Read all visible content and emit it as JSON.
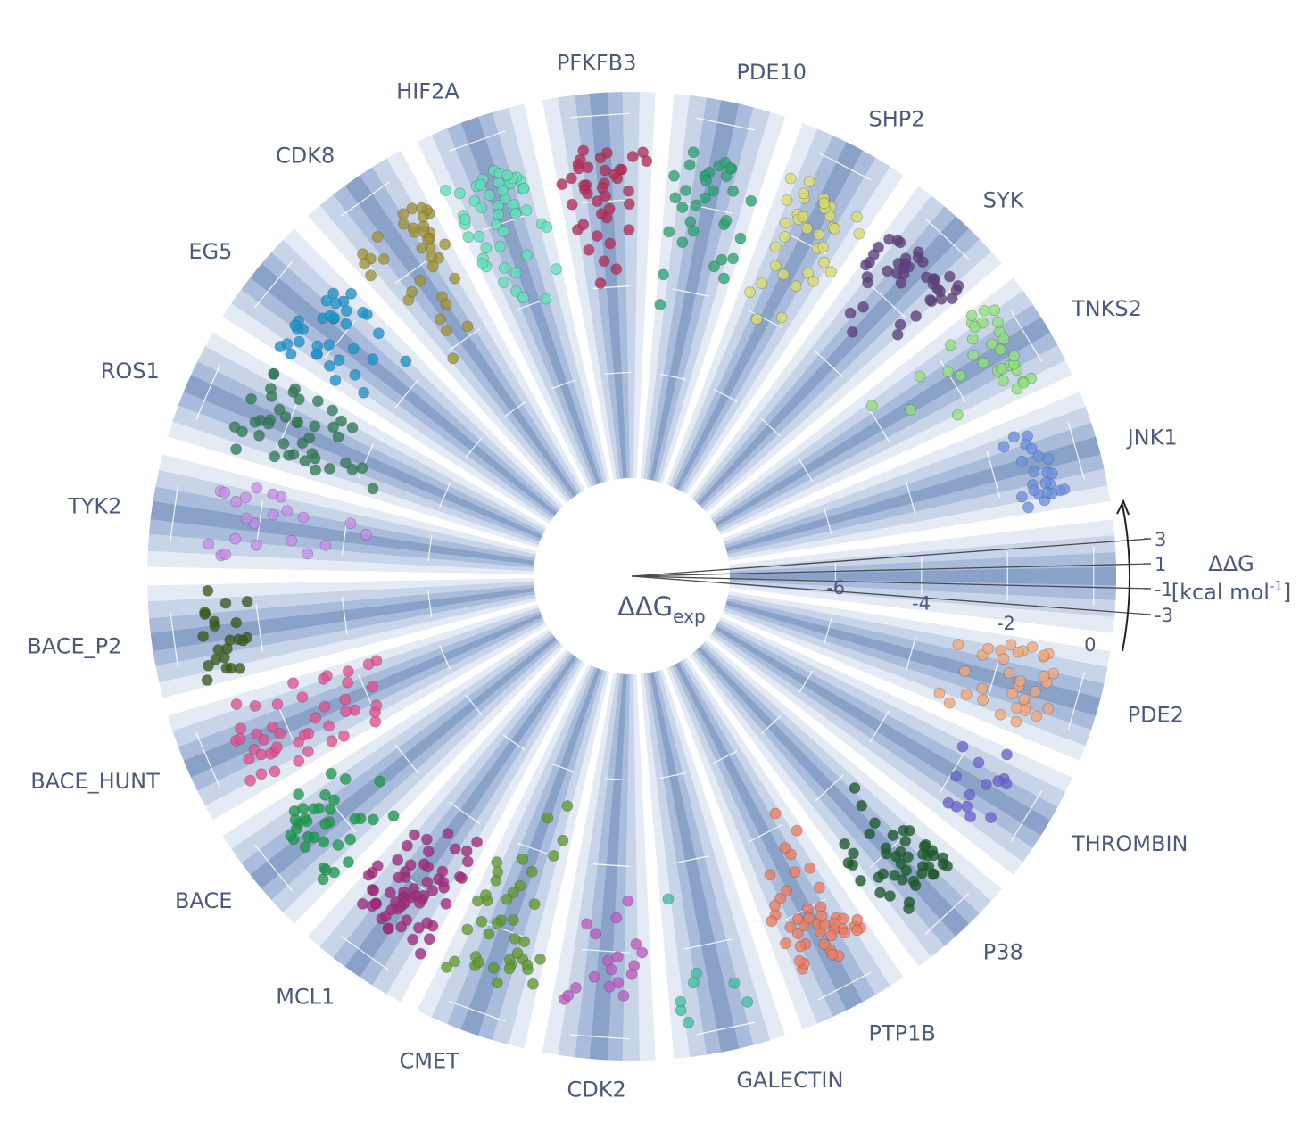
{
  "chart_data": {
    "type": "scatter",
    "subtype": "polar-strip",
    "radial_axis": {
      "title": "ΔΔG",
      "title_subscript": "exp",
      "range": [
        -8.5,
        0.5
      ],
      "tick_values": [
        -6,
        -4,
        -2,
        0
      ],
      "tick_labels": [
        "-6",
        "-4",
        "-2",
        "0"
      ]
    },
    "angular_offset_axis": {
      "title_line1": "ΔΔG",
      "title_line2_prefix": "[kcal mol",
      "title_line2_sup": "-1",
      "title_line2_suffix": "]",
      "tick_values": [
        3,
        1,
        -1,
        -3
      ],
      "tick_labels": [
        "3",
        "1",
        "-1",
        "-3"
      ]
    },
    "colors": {
      "band_light": "#e4ebf5",
      "band_mid": "#c8d5e8",
      "band_dark": "#a9bcdb",
      "band_core": "#8aa2c8",
      "text": "#4b5a78"
    },
    "series": [
      {
        "name": "JNK1",
        "color": "#6b8fe0",
        "y": [
          -1.2,
          -1.0,
          -0.8,
          -0.9,
          -1.4,
          -0.6,
          -1.1,
          -0.7,
          -1.3,
          -0.9,
          -1.0,
          -1.5,
          -0.8,
          -1.2,
          -0.5,
          -1.1,
          -0.9,
          -1.6,
          -0.7,
          -1.0,
          -1.3,
          -0.8,
          -1.1
        ]
      },
      {
        "name": "TNKS2",
        "color": "#8fe07a",
        "y": [
          -0.7,
          -0.5,
          -0.9,
          -0.6,
          -1.0,
          -0.4,
          -0.8,
          -0.7,
          -1.2,
          -0.5,
          -0.6,
          -1.6,
          -0.9,
          -0.3,
          -0.8,
          -1.1,
          -2.0,
          -2.6,
          -3.2,
          -3.9,
          -0.6,
          -0.7,
          -1.0,
          -0.5,
          -0.4,
          -0.8,
          -1.3,
          -1.8,
          -2.3,
          -0.9,
          -0.6,
          -0.5
        ]
      },
      {
        "name": "SYK",
        "color": "#5e3d7e",
        "y": [
          -1.0,
          -0.8,
          -1.2,
          -0.9,
          -1.4,
          -0.7,
          -1.1,
          -1.5,
          -1.8,
          -0.6,
          -1.0,
          -1.3,
          -0.9,
          -0.8,
          -1.6,
          -2.0,
          -2.5,
          -2.8,
          -3.1,
          -1.2,
          -0.7,
          -1.1,
          -0.9,
          -1.4,
          -1.0,
          -0.8,
          -1.3,
          -1.7,
          -2.2,
          -1.5,
          -0.9,
          -1.2,
          -1.0,
          -0.6,
          -1.1,
          -1.9,
          -2.4,
          -1.0,
          -0.8,
          -1.3
        ]
      },
      {
        "name": "SHP2",
        "color": "#d9dd6a",
        "y": [
          -1.0,
          -1.5,
          -2.0,
          -2.4,
          -0.8,
          -1.2,
          -1.7,
          -2.9,
          -3.3,
          -1.1,
          -0.9,
          -1.4,
          -1.9,
          -2.6,
          -3.6,
          -1.3,
          -0.7,
          -1.0,
          -1.6,
          -2.2,
          -2.7,
          -3.0,
          -1.8,
          -1.2,
          -0.9,
          -2.1,
          -1.5,
          -1.1,
          -3.8,
          -4.1,
          -1.4,
          -2.3,
          -1.7,
          -1.0,
          -2.8
        ]
      },
      {
        "name": "PDE10",
        "color": "#2aa36f",
        "y": [
          -1.0,
          -1.3,
          -1.6,
          -2.0,
          -2.3,
          -2.7,
          -3.0,
          -1.2,
          -0.9,
          -1.5,
          -1.8,
          -2.5,
          -3.3,
          -3.7,
          -1.1,
          -1.4,
          -2.1,
          -2.9,
          -1.7,
          -1.0,
          -2.4,
          -3.5,
          -1.3,
          -0.8,
          -1.9,
          -2.6,
          -3.1,
          -4.4,
          -1.2,
          -1.6,
          -2.2,
          -1.0,
          -1.4
        ]
      },
      {
        "name": "PFKFB3",
        "color": "#b52c56",
        "y": [
          -1.0,
          -1.3,
          -1.6,
          -1.9,
          -2.3,
          -2.6,
          -3.0,
          -3.4,
          -0.9,
          -1.2,
          -1.5,
          -1.8,
          -2.1,
          -2.8,
          -0.8,
          -1.1,
          -1.4,
          -1.7,
          -2.0,
          -2.4,
          -2.7,
          -3.1,
          -3.6,
          -1.0,
          -1.3,
          -1.6,
          -1.2,
          -0.9,
          -2.2,
          -1.5,
          -1.8,
          -3.9,
          -1.1,
          -1.4,
          -2.5,
          -1.7,
          -1.0,
          -1.3,
          -2.0,
          -1.6
        ]
      },
      {
        "name": "HIF2A",
        "color": "#5fe0b8",
        "y": [
          -0.9,
          -1.2,
          -1.5,
          -1.8,
          -2.1,
          -2.4,
          -2.8,
          -3.2,
          -3.6,
          -4.0,
          -0.8,
          -1.1,
          -1.4,
          -1.7,
          -2.0,
          -2.3,
          -2.6,
          -3.0,
          -3.4,
          -1.0,
          -1.3,
          -1.6,
          -1.9,
          -2.2,
          -2.5,
          -0.9,
          -1.2,
          -1.5,
          -1.8,
          -1.1,
          -1.4,
          -2.0,
          -2.7,
          -3.3,
          -1.0,
          -1.3,
          -1.7,
          -0.8,
          -1.2,
          -1.6,
          -2.4,
          -1.0,
          -1.5,
          -1.1,
          -1.9,
          -2.9,
          -3.8,
          -1.3,
          -1.0,
          -1.4
        ]
      },
      {
        "name": "CDK8",
        "color": "#a19232",
        "y": [
          -0.9,
          -1.2,
          -1.5,
          -1.8,
          -2.1,
          -2.5,
          -2.9,
          -3.3,
          -3.8,
          -4.2,
          -1.0,
          -1.3,
          -1.6,
          -1.9,
          -2.3,
          -2.7,
          -1.1,
          -1.4,
          -0.8,
          -1.2,
          -1.7,
          -2.0,
          -1.0,
          -1.5,
          -0.9,
          -1.3,
          -2.4,
          -3.1,
          -3.6,
          -1.1,
          -1.6,
          -1.0,
          -1.4,
          -0.8,
          -1.2,
          -2.2
        ]
      },
      {
        "name": "EG5",
        "color": "#1a93cc",
        "y": [
          -1.2,
          -1.5,
          -1.8,
          -2.1,
          -2.4,
          -2.8,
          -3.2,
          -1.0,
          -1.3,
          -1.6,
          -1.9,
          -2.2,
          -2.6,
          -1.1,
          -1.4,
          -1.7,
          -2.0,
          -2.3,
          -1.2,
          -1.5,
          -1.8,
          -1.0,
          -1.3,
          -1.6,
          -2.9,
          -3.5,
          -1.4,
          -1.1,
          -1.7,
          -2.5,
          -1.2,
          -1.9,
          -1.5,
          -1.0
        ]
      },
      {
        "name": "ROS1",
        "color": "#2f7a55",
        "y": [
          -0.9,
          -1.2,
          -1.6,
          -2.0,
          -2.4,
          -2.8,
          -3.2,
          -3.6,
          -4.0,
          -4.4,
          -1.1,
          -1.4,
          -1.8,
          -2.2,
          -2.6,
          -3.0,
          -3.4,
          -3.8,
          -1.0,
          -1.3,
          -1.7,
          -2.1,
          -2.5,
          -2.9,
          -3.3,
          -1.2,
          -1.5,
          -1.9,
          -2.3,
          -2.7,
          -3.1,
          -1.1,
          -1.6,
          -2.0,
          -2.4,
          -2.8,
          -1.3,
          -1.8,
          -2.2,
          -2.6,
          -3.0,
          -1.4
        ]
      },
      {
        "name": "TYK2",
        "color": "#c78ce8",
        "y": [
          -0.9,
          -1.2,
          -1.6,
          -2.0,
          -2.4,
          -2.8,
          -3.2,
          -3.6,
          -4.1,
          -4.5,
          -1.0,
          -1.4,
          -1.8,
          -2.2,
          -2.6,
          -3.0,
          -1.1,
          -1.5,
          -1.9,
          -2.3,
          -1.3,
          -1.7
        ]
      },
      {
        "name": "BACE_P2",
        "color": "#3a5a1a",
        "y": [
          -0.7,
          -0.9,
          -1.1,
          -1.3,
          -1.5,
          -1.7,
          -0.8,
          -1.0,
          -1.2,
          -1.4,
          -1.6,
          -0.6,
          -0.9,
          -1.1,
          -1.3,
          -1.0,
          -0.8,
          -1.2,
          -1.5,
          -0.7,
          -1.0,
          -1.8
        ]
      },
      {
        "name": "BACE_HUNT",
        "color": "#e3508e",
        "y": [
          -0.7,
          -0.9,
          -1.1,
          -1.3,
          -1.5,
          -1.8,
          -2.1,
          -2.4,
          -2.7,
          -3.0,
          -3.3,
          -3.6,
          -3.9,
          -4.2,
          -4.5,
          -0.8,
          -1.0,
          -1.2,
          -1.4,
          -1.6,
          -1.9,
          -2.2,
          -2.5,
          -2.8,
          -3.1,
          -3.4,
          -3.7,
          -4.0,
          -4.3,
          -0.9,
          -1.1,
          -1.3,
          -1.5,
          -1.7,
          -2.0,
          -2.3,
          -2.6,
          -3.2,
          -3.5,
          -3.8,
          -4.1,
          -1.0,
          -1.4,
          -2.9
        ]
      },
      {
        "name": "BACE",
        "color": "#1a9a4c",
        "y": [
          -0.7,
          -0.9,
          -1.1,
          -1.3,
          -1.5,
          -1.7,
          -2.0,
          -2.3,
          -2.6,
          -2.9,
          -3.2,
          -0.8,
          -1.0,
          -1.2,
          -1.4,
          -1.6,
          -1.9,
          -2.2,
          -2.5,
          -0.9,
          -1.1,
          -1.3,
          -1.8,
          -2.1,
          -1.0,
          -1.2,
          -1.5,
          -0.8,
          -1.4,
          -1.7,
          -2.4,
          -1.1,
          -1.3,
          -0.9,
          -1.6
        ]
      },
      {
        "name": "MCL1",
        "color": "#a2297c",
        "y": [
          -0.7,
          -0.9,
          -1.1,
          -1.3,
          -1.5,
          -1.7,
          -1.9,
          -2.1,
          -2.3,
          -2.5,
          -2.7,
          -2.9,
          -3.1,
          -3.3,
          -3.6,
          -0.8,
          -1.0,
          -1.2,
          -1.4,
          -1.6,
          -1.8,
          -2.0,
          -2.2,
          -2.4,
          -2.6,
          -2.8,
          -3.0,
          -0.9,
          -1.1,
          -1.3,
          -1.5,
          -1.7,
          -1.9,
          -2.1,
          -2.3,
          -2.5,
          -1.0,
          -1.2,
          -1.4,
          -1.6,
          -1.8,
          -2.0,
          -2.2,
          -0.8,
          -1.1,
          -1.4,
          -1.7,
          -2.6,
          -3.4,
          -1.0,
          -1.3,
          -1.6,
          -1.9,
          -2.4,
          -1.2,
          -1.5,
          -0.9,
          -1.8,
          -2.7,
          -1.1,
          -1.4,
          -3.2
        ]
      },
      {
        "name": "CMET",
        "color": "#5f9a2a",
        "y": [
          -0.7,
          -1.0,
          -1.3,
          -1.6,
          -1.9,
          -2.2,
          -2.5,
          -2.8,
          -3.1,
          -3.4,
          -3.7,
          -4.0,
          -4.4,
          -4.8,
          -5.2,
          -0.8,
          -1.1,
          -1.4,
          -1.7,
          -2.0,
          -2.3,
          -2.6,
          -2.9,
          -3.2,
          -0.9,
          -1.2,
          -1.5,
          -1.8,
          -2.1,
          -2.4,
          -1.0,
          -1.3,
          -1.6,
          -1.9,
          -2.7,
          -1.1,
          -1.4,
          -3.0,
          -3.5,
          -1.2
        ]
      },
      {
        "name": "CDK2",
        "color": "#bf5ac2",
        "y": [
          -0.8,
          -1.1,
          -1.4,
          -1.7,
          -2.0,
          -2.4,
          -2.8,
          -3.2,
          -0.9,
          -1.2,
          -1.5,
          -1.8,
          -2.2,
          -2.6,
          -1.0,
          -1.3,
          -1.6,
          -1.9
        ]
      },
      {
        "name": "GALECTIN",
        "color": "#3fbfa0",
        "y": [
          -0.3,
          -0.6,
          -0.8,
          -1.0,
          -1.2,
          -1.4,
          -3.2,
          -0.5
        ]
      },
      {
        "name": "PTP1B",
        "color": "#ef7a5e",
        "y": [
          -0.8,
          -1.0,
          -1.2,
          -1.4,
          -1.6,
          -1.8,
          -2.0,
          -2.3,
          -2.6,
          -2.9,
          -3.3,
          -3.7,
          -4.3,
          -0.7,
          -0.9,
          -1.1,
          -1.3,
          -1.5,
          -1.7,
          -1.9,
          -2.2,
          -2.5,
          -2.8,
          -3.1,
          -0.9,
          -1.1,
          -1.3,
          -1.5,
          -1.7,
          -1.2,
          -1.0,
          -1.4,
          -1.6,
          -2.1,
          -0.8,
          -1.2,
          -1.8,
          -2.4,
          -3.5,
          -1.3,
          -1.1,
          -1.5,
          -1.9,
          -1.0,
          -1.4
        ]
      },
      {
        "name": "P38",
        "color": "#1a5a2a",
        "y": [
          -0.7,
          -0.9,
          -1.1,
          -1.3,
          -1.5,
          -1.7,
          -1.9,
          -2.1,
          -2.3,
          -2.5,
          -2.8,
          -3.2,
          -3.6,
          -0.8,
          -1.0,
          -1.2,
          -1.4,
          -1.6,
          -1.8,
          -2.0,
          -2.2,
          -2.4,
          -2.7,
          -0.9,
          -1.1,
          -1.3,
          -1.5,
          -1.7,
          -1.9,
          -2.1,
          -1.0,
          -1.2,
          -1.4,
          -1.6,
          -1.8,
          -0.8,
          -1.1,
          -1.3,
          -1.5,
          -2.0,
          -2.6,
          -1.2,
          -0.9,
          -1.4
        ]
      },
      {
        "name": "THROMBIN",
        "color": "#6a63cf",
        "y": [
          -0.7,
          -0.9,
          -1.1,
          -1.3,
          -1.5,
          -1.7,
          -1.9,
          -2.1,
          -0.8,
          -1.0,
          -1.2,
          -1.4,
          -1.6,
          -1.1
        ]
      },
      {
        "name": "PDE2",
        "color": "#f2a77a",
        "y": [
          -0.6,
          -0.8,
          -1.0,
          -1.2,
          -1.4,
          -1.6,
          -1.8,
          -2.0,
          -2.2,
          -2.5,
          -2.8,
          -3.1,
          -0.7,
          -0.9,
          -1.1,
          -1.3,
          -1.5,
          -1.7,
          -1.9,
          -2.1,
          -2.4,
          -2.7,
          -0.8,
          -1.0,
          -1.2,
          -1.4,
          -1.6,
          -1.1,
          -0.9,
          -1.3,
          -2.3,
          -3.0,
          -1.0,
          -1.5
        ]
      }
    ]
  }
}
